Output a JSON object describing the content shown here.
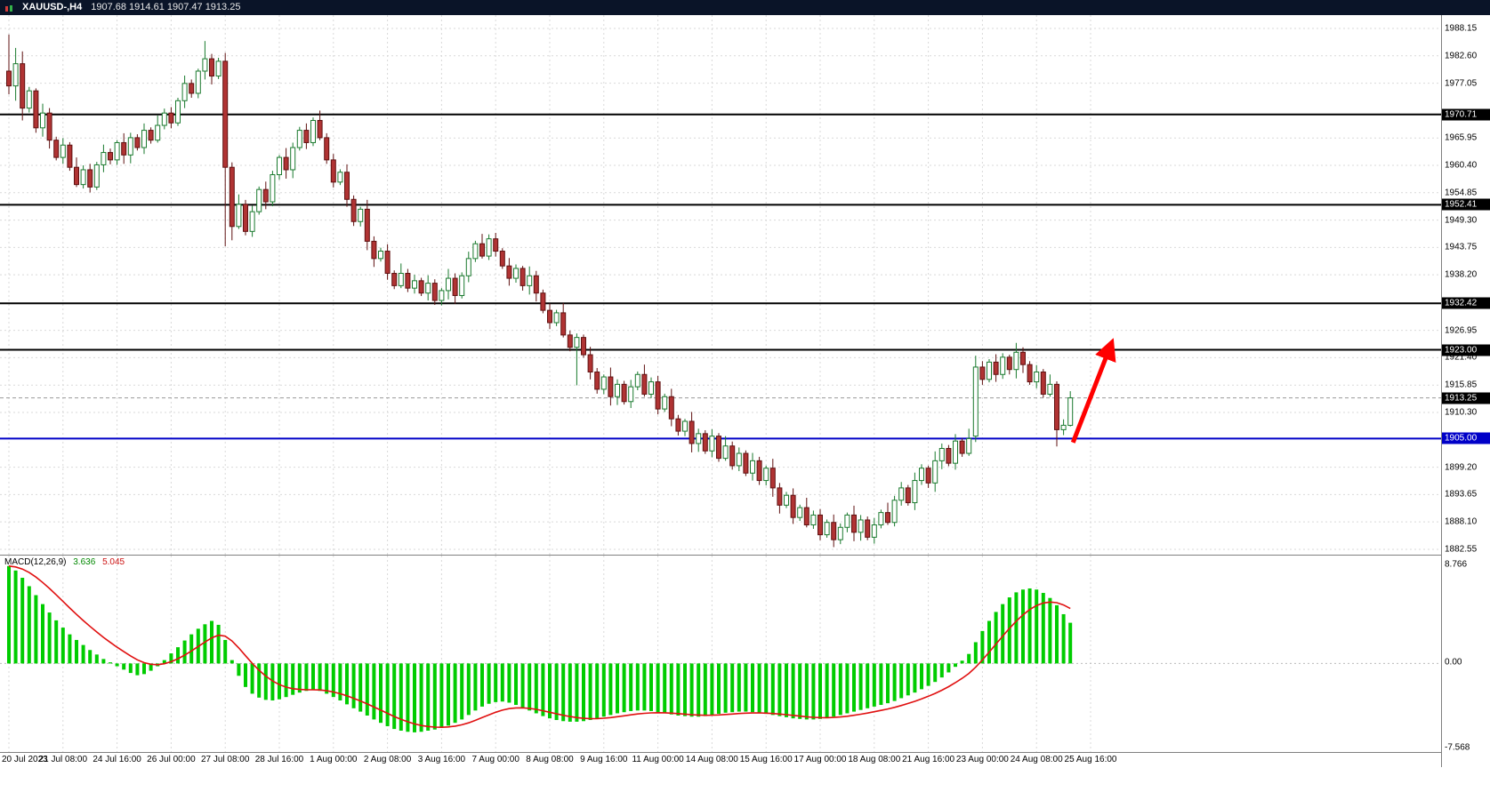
{
  "header": {
    "symbol_timeframe": "XAUUSD-,H4",
    "ohlc_readout": "1907.68 1914.61 1907.47 1913.25"
  },
  "colors": {
    "titlebar_bg": "#0a1428",
    "bull_fill": "#ffffff",
    "bull_stroke": "#1a7a2e",
    "bear_fill": "#b03333",
    "bear_stroke": "#5f1111",
    "grid": "#d9d9d9",
    "level_black": "#000000",
    "level_blue": "#0000c8",
    "macd_hist": "#00cc00",
    "macd_signal": "#e01010",
    "arrow": "#ff0000"
  },
  "chart_data": {
    "type": "candlestick",
    "title": "XAUUSD H4 chart with MACD",
    "symbol": "XAUUSD",
    "timeframe": "H4",
    "ohlc_display": {
      "open": "1907.68",
      "high": "1914.61",
      "low": "1907.47",
      "close": "1913.25"
    },
    "price_axis_ticks": [
      "1988.15",
      "1982.60",
      "1977.05",
      "1965.95",
      "1960.40",
      "1954.85",
      "1949.30",
      "1943.75",
      "1938.20",
      "1926.95",
      "1921.40",
      "1915.85",
      "1910.30",
      "1899.20",
      "1893.65",
      "1888.10",
      "1882.55"
    ],
    "levels": [
      {
        "price": 1970.71,
        "label": "1970.71",
        "box_bg": "#000000",
        "line_color": "#000000",
        "line_width": 2,
        "dashed": false
      },
      {
        "price": 1952.41,
        "label": "1952.41",
        "box_bg": "#000000",
        "line_color": "#000000",
        "line_width": 2,
        "dashed": false
      },
      {
        "price": 1932.42,
        "label": "1932.42",
        "box_bg": "#000000",
        "line_color": "#000000",
        "line_width": 2,
        "dashed": false
      },
      {
        "price": 1923.0,
        "label": "1923.00",
        "box_bg": "#000000",
        "line_color": "#000000",
        "line_width": 2,
        "dashed": false
      },
      {
        "price": 1913.25,
        "label": "1913.25",
        "box_bg": "#000000",
        "line_color": "#9a9a9a",
        "line_width": 1,
        "dashed": true
      },
      {
        "price": 1905.0,
        "label": "1905.00",
        "box_bg": "#0000c8",
        "line_color": "#0000c8",
        "line_width": 2,
        "dashed": false
      }
    ],
    "time_labels": [
      "20 Jul 2023",
      "21 Jul 08:00",
      "24 Jul 16:00",
      "26 Jul 00:00",
      "27 Jul 08:00",
      "28 Jul 16:00",
      "1 Aug 00:00",
      "2 Aug 08:00",
      "3 Aug 16:00",
      "7 Aug 00:00",
      "8 Aug 08:00",
      "9 Aug 16:00",
      "11 Aug 00:00",
      "14 Aug 08:00",
      "15 Aug 16:00",
      "17 Aug 00:00",
      "18 Aug 08:00",
      "21 Aug 16:00",
      "23 Aug 00:00",
      "24 Aug 08:00",
      "25 Aug 16:00"
    ],
    "candles": {
      "first_open": 1979.5,
      "closes": [
        1976.5,
        1981.0,
        1972.0,
        1975.5,
        1968.0,
        1971.0,
        1965.5,
        1962.0,
        1964.5,
        1960.0,
        1956.5,
        1959.5,
        1956.0,
        1960.5,
        1963.0,
        1961.5,
        1965.0,
        1962.5,
        1966.0,
        1964.0,
        1967.5,
        1965.5,
        1968.5,
        1971.0,
        1969.0,
        1973.5,
        1977.0,
        1975.0,
        1979.5,
        1982.0,
        1978.5,
        1981.5,
        1960.0,
        1948.0,
        1952.5,
        1947.0,
        1951.0,
        1955.5,
        1953.0,
        1958.5,
        1962.0,
        1959.5,
        1964.0,
        1967.5,
        1965.0,
        1969.5,
        1966.0,
        1961.5,
        1957.0,
        1959.0,
        1953.5,
        1949.0,
        1951.5,
        1945.0,
        1941.5,
        1943.0,
        1938.5,
        1936.0,
        1938.5,
        1935.5,
        1937.0,
        1934.5,
        1936.5,
        1933.0,
        1935.0,
        1937.5,
        1934.0,
        1938.0,
        1941.5,
        1944.5,
        1942.0,
        1945.5,
        1943.0,
        1940.0,
        1937.5,
        1939.5,
        1936.0,
        1938.0,
        1934.5,
        1931.0,
        1928.5,
        1930.5,
        1926.0,
        1923.5,
        1925.5,
        1922.0,
        1918.5,
        1915.0,
        1917.5,
        1913.5,
        1916.0,
        1912.5,
        1915.5,
        1918.0,
        1914.0,
        1916.5,
        1911.0,
        1913.5,
        1909.0,
        1906.5,
        1908.5,
        1904.0,
        1906.0,
        1902.5,
        1905.5,
        1901.0,
        1903.5,
        1899.5,
        1902.0,
        1898.0,
        1900.5,
        1896.5,
        1899.0,
        1895.0,
        1891.5,
        1893.5,
        1889.0,
        1891.0,
        1887.5,
        1889.5,
        1885.5,
        1888.0,
        1884.5,
        1887.0,
        1889.5,
        1886.0,
        1888.5,
        1885.0,
        1887.5,
        1890.0,
        1888.0,
        1892.5,
        1895.0,
        1892.0,
        1896.5,
        1899.0,
        1896.0,
        1900.5,
        1903.0,
        1900.0,
        1904.5,
        1902.0,
        1905.0,
        1919.5,
        1917.0,
        1920.5,
        1918.0,
        1921.5,
        1919.0,
        1922.5,
        1920.0,
        1916.5,
        1918.5,
        1914.0,
        1916.0,
        1906.8,
        1907.7,
        1913.25
      ],
      "wick_upper_pattern": [
        1.2,
        0.6,
        1.6,
        0.8,
        0.5,
        1.9,
        1.0,
        0.7,
        1.4,
        0.6,
        2.0,
        0.9
      ],
      "wick_lower_pattern": [
        0.7,
        1.5,
        0.6,
        1.1,
        1.8,
        0.5,
        0.9,
        1.3,
        0.6,
        1.7,
        0.8,
        1.0
      ],
      "overrides": {
        "0": [
          1979.5,
          1986.9,
          1974.8,
          1976.5
        ],
        "1": [
          1976.5,
          1984.2,
          1973.5,
          1981.0
        ],
        "2": [
          1981.0,
          1983.5,
          1969.5,
          1972.0
        ],
        "29": [
          1979.5,
          1985.6,
          1977.8,
          1982.0
        ],
        "32": [
          1981.5,
          1983.2,
          1944.0,
          1960.0
        ],
        "33": [
          1960.0,
          1961.0,
          1945.2,
          1948.0
        ],
        "84": [
          1923.5,
          1926.3,
          1915.8,
          1925.5
        ],
        "143": [
          1905.5,
          1921.8,
          1904.3,
          1919.5
        ],
        "155": [
          1916.0,
          1916.6,
          1903.4,
          1906.8
        ],
        "157": [
          1907.68,
          1914.61,
          1907.47,
          1913.25
        ]
      }
    },
    "macd": {
      "label": "MACD(12,26,9)",
      "value": "3.636",
      "signal_value": "5.045",
      "axis_labels": [
        "8.766",
        "0.00",
        "-7.568"
      ],
      "histogram": [
        8.7,
        8.3,
        7.65,
        6.9,
        6.1,
        5.3,
        4.55,
        3.85,
        3.2,
        2.6,
        2.1,
        1.65,
        1.2,
        0.8,
        0.4,
        0.1,
        -0.25,
        -0.55,
        -0.85,
        -1.05,
        -0.95,
        -0.65,
        -0.25,
        0.3,
        0.9,
        1.45,
        2.05,
        2.6,
        3.1,
        3.5,
        3.8,
        3.45,
        2.1,
        0.3,
        -1.1,
        -2.1,
        -2.7,
        -3.05,
        -3.25,
        -3.3,
        -3.2,
        -3.0,
        -2.8,
        -2.6,
        -2.45,
        -2.35,
        -2.45,
        -2.7,
        -3.0,
        -3.3,
        -3.65,
        -4.0,
        -4.3,
        -4.65,
        -5.0,
        -5.3,
        -5.6,
        -5.85,
        -6.0,
        -6.1,
        -6.15,
        -6.1,
        -6.0,
        -5.9,
        -5.75,
        -5.55,
        -5.3,
        -5.0,
        -4.6,
        -4.2,
        -3.85,
        -3.6,
        -3.45,
        -3.4,
        -3.5,
        -3.7,
        -3.95,
        -4.2,
        -4.45,
        -4.7,
        -4.9,
        -5.05,
        -5.15,
        -5.2,
        -5.2,
        -5.15,
        -5.05,
        -4.9,
        -4.75,
        -4.6,
        -4.45,
        -4.35,
        -4.25,
        -4.2,
        -4.2,
        -4.25,
        -4.35,
        -4.45,
        -4.55,
        -4.65,
        -4.7,
        -4.75,
        -4.75,
        -4.7,
        -4.6,
        -4.5,
        -4.4,
        -4.35,
        -4.3,
        -4.3,
        -4.35,
        -4.4,
        -4.5,
        -4.6,
        -4.7,
        -4.8,
        -4.9,
        -4.95,
        -5.0,
        -5.0,
        -4.95,
        -4.85,
        -4.75,
        -4.6,
        -4.45,
        -4.3,
        -4.15,
        -4.0,
        -3.85,
        -3.7,
        -3.55,
        -3.35,
        -3.1,
        -2.85,
        -2.6,
        -2.3,
        -2.0,
        -1.65,
        -1.25,
        -0.8,
        -0.3,
        0.25,
        0.85,
        1.9,
        2.9,
        3.8,
        4.6,
        5.3,
        5.9,
        6.35,
        6.6,
        6.7,
        6.6,
        6.3,
        5.85,
        5.2,
        4.4,
        3.636
      ]
    },
    "arrow": {
      "from_index": 157.4,
      "from_price": 1904.2,
      "to_index": 162.8,
      "to_price": 1923.3
    }
  }
}
